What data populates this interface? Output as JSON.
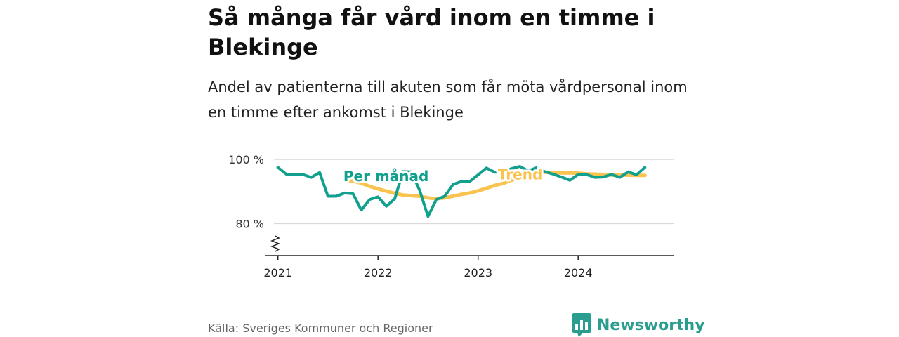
{
  "title": "Så många får vård inom en timme i Blekinge",
  "subtitle": "Andel av patienterna till akuten som får möta vårdpersonal inom en timme efter ankomst i Blekinge",
  "source": "Källa: Sveriges Kommuner och Regioner",
  "brand": {
    "name": "Newsworthy",
    "icon": "newsworthy-logo-icon"
  },
  "chart_data": {
    "type": "line",
    "y_ticks": [
      {
        "value": 80,
        "label": "80 %"
      },
      {
        "value": 100,
        "label": "100 %"
      }
    ],
    "ylim": [
      70,
      100
    ],
    "y_axis_broken": true,
    "x_ticks": [
      {
        "value": 2021,
        "label": "2021"
      },
      {
        "value": 2022,
        "label": "2022"
      },
      {
        "value": 2023,
        "label": "2023"
      },
      {
        "value": 2024,
        "label": "2024"
      }
    ],
    "xlim": [
      2020.96,
      2024.96
    ],
    "grid": "horizontal",
    "colors": {
      "monthly": "#12a08e",
      "trend": "#f9c350"
    },
    "series": [
      {
        "name": "Per månad",
        "key": "monthly",
        "label_at": [
          2022.08,
          93.2
        ],
        "points": [
          [
            2021.0,
            97.5
          ],
          [
            2021.083,
            95.4
          ],
          [
            2021.167,
            95.3
          ],
          [
            2021.25,
            95.3
          ],
          [
            2021.333,
            94.4
          ],
          [
            2021.417,
            95.9
          ],
          [
            2021.5,
            88.5
          ],
          [
            2021.583,
            88.5
          ],
          [
            2021.667,
            89.5
          ],
          [
            2021.75,
            89.3
          ],
          [
            2021.833,
            84.2
          ],
          [
            2021.917,
            87.5
          ],
          [
            2022.0,
            88.3
          ],
          [
            2022.083,
            85.4
          ],
          [
            2022.167,
            87.7
          ],
          [
            2022.25,
            96.2
          ],
          [
            2022.333,
            96.1
          ],
          [
            2022.417,
            90.3
          ],
          [
            2022.5,
            82.2
          ],
          [
            2022.583,
            87.5
          ],
          [
            2022.667,
            88.5
          ],
          [
            2022.75,
            92.2
          ],
          [
            2022.833,
            93.1
          ],
          [
            2022.917,
            93.1
          ],
          [
            2023.0,
            95.2
          ],
          [
            2023.083,
            97.3
          ],
          [
            2023.167,
            96.0
          ],
          [
            2023.25,
            96.2
          ],
          [
            2023.333,
            97.1
          ],
          [
            2023.417,
            97.8
          ],
          [
            2023.5,
            96.4
          ],
          [
            2023.583,
            97.4
          ],
          [
            2023.667,
            96.2
          ],
          [
            2023.75,
            95.4
          ],
          [
            2023.833,
            94.5
          ],
          [
            2023.917,
            93.5
          ],
          [
            2024.0,
            95.3
          ],
          [
            2024.083,
            95.3
          ],
          [
            2024.167,
            94.4
          ],
          [
            2024.25,
            94.5
          ],
          [
            2024.333,
            95.3
          ],
          [
            2024.417,
            94.4
          ],
          [
            2024.5,
            96.1
          ],
          [
            2024.583,
            95.2
          ],
          [
            2024.667,
            97.5
          ]
        ]
      },
      {
        "name": "Trend",
        "key": "trend",
        "label_at": [
          2023.42,
          93.8
        ],
        "points": [
          [
            2021.667,
            93.5
          ],
          [
            2021.75,
            93.2
          ],
          [
            2021.833,
            92.6
          ],
          [
            2021.917,
            91.6
          ],
          [
            2022.0,
            90.8
          ],
          [
            2022.083,
            90.1
          ],
          [
            2022.167,
            89.4
          ],
          [
            2022.25,
            88.9
          ],
          [
            2022.333,
            88.7
          ],
          [
            2022.417,
            88.5
          ],
          [
            2022.5,
            88.0
          ],
          [
            2022.583,
            87.7
          ],
          [
            2022.667,
            88.0
          ],
          [
            2022.75,
            88.5
          ],
          [
            2022.833,
            89.1
          ],
          [
            2022.917,
            89.5
          ],
          [
            2023.0,
            90.2
          ],
          [
            2023.083,
            91.0
          ],
          [
            2023.167,
            91.9
          ],
          [
            2023.25,
            92.5
          ],
          [
            2023.333,
            93.5
          ],
          [
            2023.417,
            94.4
          ],
          [
            2023.5,
            95.2
          ],
          [
            2023.583,
            95.8
          ],
          [
            2023.667,
            96.0
          ],
          [
            2023.75,
            95.9
          ],
          [
            2023.833,
            95.8
          ],
          [
            2023.917,
            95.8
          ],
          [
            2024.0,
            95.7
          ],
          [
            2024.083,
            95.5
          ],
          [
            2024.167,
            95.4
          ],
          [
            2024.25,
            95.3
          ],
          [
            2024.333,
            95.1
          ],
          [
            2024.417,
            95.1
          ],
          [
            2024.5,
            95.1
          ],
          [
            2024.583,
            95.0
          ],
          [
            2024.667,
            95.0
          ]
        ]
      }
    ]
  }
}
